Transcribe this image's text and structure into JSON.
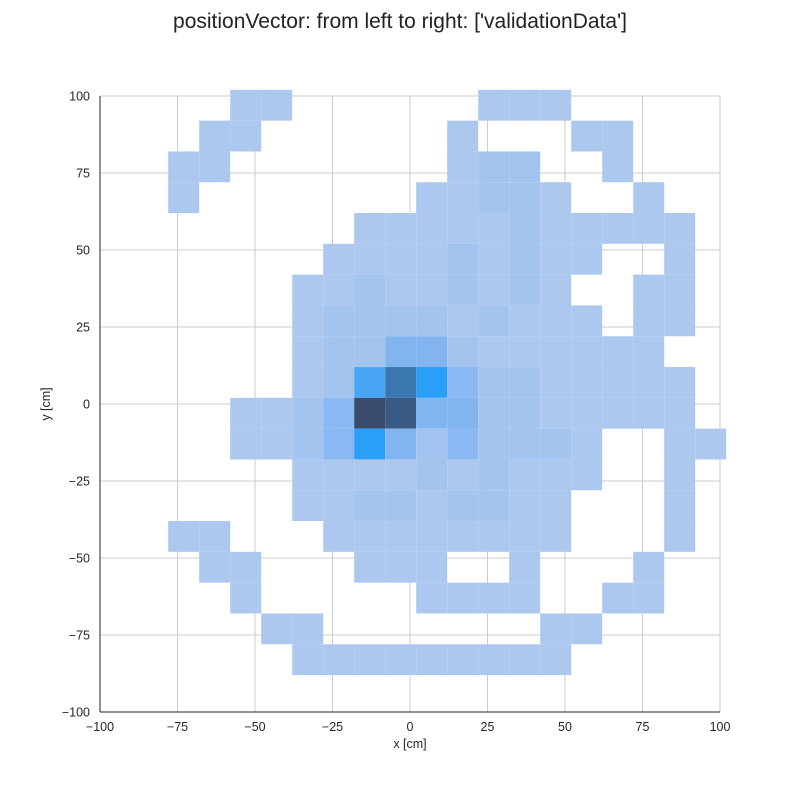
{
  "chart_data": {
    "type": "heatmap",
    "title": "positionVector: from left to right: ['validationData']",
    "xlabel": "x [cm]",
    "ylabel": "y [cm]",
    "xlim": [
      -100,
      100
    ],
    "ylim": [
      -100,
      100
    ],
    "x_ticks": [
      -100,
      -75,
      -50,
      -25,
      0,
      25,
      50,
      75,
      100
    ],
    "y_ticks": [
      -100,
      -75,
      -50,
      -25,
      0,
      25,
      50,
      75,
      100
    ],
    "x_tick_labels": [
      "−100",
      "−75",
      "−50",
      "−25",
      "0",
      "25",
      "50",
      "75",
      "100"
    ],
    "y_tick_labels": [
      "−100",
      "−75",
      "−50",
      "−25",
      "0",
      "25",
      "50",
      "75",
      "100"
    ],
    "grid": true,
    "bin_size_cm": 10,
    "x_bin_origin": -88,
    "y_bin_origin": -88,
    "colors": {
      "low": "#adc8ee",
      "mid": "#8ab4f0",
      "bright": "#2b9ff7",
      "dark": "#3b4c6a",
      "grid": "#cccccc"
    },
    "cells": [
      {
        "col": 3,
        "row": 18,
        "level": 1
      },
      {
        "col": 4,
        "row": 18,
        "level": 1
      },
      {
        "col": 11,
        "row": 18,
        "level": 1
      },
      {
        "col": 12,
        "row": 18,
        "level": 1
      },
      {
        "col": 13,
        "row": 18,
        "level": 1
      },
      {
        "col": 2,
        "row": 17,
        "level": 1
      },
      {
        "col": 3,
        "row": 17,
        "level": 1
      },
      {
        "col": 10,
        "row": 17,
        "level": 1
      },
      {
        "col": 14,
        "row": 17,
        "level": 1
      },
      {
        "col": 15,
        "row": 17,
        "level": 1
      },
      {
        "col": 1,
        "row": 16,
        "level": 1
      },
      {
        "col": 2,
        "row": 16,
        "level": 1
      },
      {
        "col": 10,
        "row": 16,
        "level": 1
      },
      {
        "col": 11,
        "row": 16,
        "level": 2
      },
      {
        "col": 12,
        "row": 16,
        "level": 2
      },
      {
        "col": 15,
        "row": 16,
        "level": 1
      },
      {
        "col": 1,
        "row": 15,
        "level": 1
      },
      {
        "col": 9,
        "row": 15,
        "level": 1
      },
      {
        "col": 10,
        "row": 15,
        "level": 1
      },
      {
        "col": 11,
        "row": 15,
        "level": 2
      },
      {
        "col": 12,
        "row": 15,
        "level": 2
      },
      {
        "col": 13,
        "row": 15,
        "level": 1
      },
      {
        "col": 16,
        "row": 15,
        "level": 1
      },
      {
        "col": 7,
        "row": 14,
        "level": 1
      },
      {
        "col": 8,
        "row": 14,
        "level": 1
      },
      {
        "col": 9,
        "row": 14,
        "level": 1
      },
      {
        "col": 10,
        "row": 14,
        "level": 1
      },
      {
        "col": 11,
        "row": 14,
        "level": 1
      },
      {
        "col": 12,
        "row": 14,
        "level": 2
      },
      {
        "col": 13,
        "row": 14,
        "level": 1
      },
      {
        "col": 14,
        "row": 14,
        "level": 1
      },
      {
        "col": 15,
        "row": 14,
        "level": 1
      },
      {
        "col": 16,
        "row": 14,
        "level": 1
      },
      {
        "col": 17,
        "row": 14,
        "level": 1
      },
      {
        "col": 6,
        "row": 13,
        "level": 1
      },
      {
        "col": 7,
        "row": 13,
        "level": 1
      },
      {
        "col": 8,
        "row": 13,
        "level": 1
      },
      {
        "col": 9,
        "row": 13,
        "level": 1
      },
      {
        "col": 10,
        "row": 13,
        "level": 2
      },
      {
        "col": 11,
        "row": 13,
        "level": 1
      },
      {
        "col": 12,
        "row": 13,
        "level": 2
      },
      {
        "col": 13,
        "row": 13,
        "level": 1
      },
      {
        "col": 14,
        "row": 13,
        "level": 1
      },
      {
        "col": 17,
        "row": 13,
        "level": 1
      },
      {
        "col": 5,
        "row": 12,
        "level": 1
      },
      {
        "col": 6,
        "row": 12,
        "level": 1
      },
      {
        "col": 7,
        "row": 12,
        "level": 2
      },
      {
        "col": 8,
        "row": 12,
        "level": 1
      },
      {
        "col": 9,
        "row": 12,
        "level": 1
      },
      {
        "col": 10,
        "row": 12,
        "level": 2
      },
      {
        "col": 11,
        "row": 12,
        "level": 1
      },
      {
        "col": 12,
        "row": 12,
        "level": 2
      },
      {
        "col": 13,
        "row": 12,
        "level": 1
      },
      {
        "col": 16,
        "row": 12,
        "level": 1
      },
      {
        "col": 17,
        "row": 12,
        "level": 1
      },
      {
        "col": 5,
        "row": 11,
        "level": 1
      },
      {
        "col": 6,
        "row": 11,
        "level": 2
      },
      {
        "col": 7,
        "row": 11,
        "level": 2
      },
      {
        "col": 8,
        "row": 11,
        "level": 2
      },
      {
        "col": 9,
        "row": 11,
        "level": 2
      },
      {
        "col": 10,
        "row": 11,
        "level": 1
      },
      {
        "col": 11,
        "row": 11,
        "level": 2
      },
      {
        "col": 12,
        "row": 11,
        "level": 1
      },
      {
        "col": 13,
        "row": 11,
        "level": 1
      },
      {
        "col": 14,
        "row": 11,
        "level": 1
      },
      {
        "col": 16,
        "row": 11,
        "level": 1
      },
      {
        "col": 17,
        "row": 11,
        "level": 1
      },
      {
        "col": 5,
        "row": 10,
        "level": 1
      },
      {
        "col": 6,
        "row": 10,
        "level": 2
      },
      {
        "col": 7,
        "row": 10,
        "level": 2
      },
      {
        "col": 8,
        "row": 10,
        "level": 4
      },
      {
        "col": 9,
        "row": 10,
        "level": 4
      },
      {
        "col": 10,
        "row": 10,
        "level": 2
      },
      {
        "col": 11,
        "row": 10,
        "level": 1
      },
      {
        "col": 12,
        "row": 10,
        "level": 1
      },
      {
        "col": 13,
        "row": 10,
        "level": 1
      },
      {
        "col": 14,
        "row": 10,
        "level": 1
      },
      {
        "col": 15,
        "row": 10,
        "level": 1
      },
      {
        "col": 16,
        "row": 10,
        "level": 1
      },
      {
        "col": 5,
        "row": 9,
        "level": 1
      },
      {
        "col": 6,
        "row": 9,
        "level": 2
      },
      {
        "col": 7,
        "row": 9,
        "level": 5
      },
      {
        "col": 8,
        "row": 9,
        "level": 7
      },
      {
        "col": 9,
        "row": 9,
        "level": 6
      },
      {
        "col": 10,
        "row": 9,
        "level": 3
      },
      {
        "col": 11,
        "row": 9,
        "level": 2
      },
      {
        "col": 12,
        "row": 9,
        "level": 2
      },
      {
        "col": 13,
        "row": 9,
        "level": 1
      },
      {
        "col": 14,
        "row": 9,
        "level": 1
      },
      {
        "col": 15,
        "row": 9,
        "level": 1
      },
      {
        "col": 16,
        "row": 9,
        "level": 1
      },
      {
        "col": 17,
        "row": 9,
        "level": 1
      },
      {
        "col": 3,
        "row": 8,
        "level": 1
      },
      {
        "col": 4,
        "row": 8,
        "level": 1
      },
      {
        "col": 5,
        "row": 8,
        "level": 2
      },
      {
        "col": 6,
        "row": 8,
        "level": 3
      },
      {
        "col": 7,
        "row": 8,
        "level": 9
      },
      {
        "col": 8,
        "row": 8,
        "level": 8
      },
      {
        "col": 9,
        "row": 8,
        "level": 4
      },
      {
        "col": 10,
        "row": 8,
        "level": 4
      },
      {
        "col": 11,
        "row": 8,
        "level": 2
      },
      {
        "col": 12,
        "row": 8,
        "level": 2
      },
      {
        "col": 13,
        "row": 8,
        "level": 1
      },
      {
        "col": 14,
        "row": 8,
        "level": 1
      },
      {
        "col": 15,
        "row": 8,
        "level": 1
      },
      {
        "col": 16,
        "row": 8,
        "level": 1
      },
      {
        "col": 17,
        "row": 8,
        "level": 1
      },
      {
        "col": 3,
        "row": 7,
        "level": 1
      },
      {
        "col": 4,
        "row": 7,
        "level": 1
      },
      {
        "col": 5,
        "row": 7,
        "level": 2
      },
      {
        "col": 6,
        "row": 7,
        "level": 3
      },
      {
        "col": 7,
        "row": 7,
        "level": 6
      },
      {
        "col": 8,
        "row": 7,
        "level": 4
      },
      {
        "col": 9,
        "row": 7,
        "level": 2
      },
      {
        "col": 10,
        "row": 7,
        "level": 3
      },
      {
        "col": 11,
        "row": 7,
        "level": 2
      },
      {
        "col": 12,
        "row": 7,
        "level": 2
      },
      {
        "col": 13,
        "row": 7,
        "level": 2
      },
      {
        "col": 14,
        "row": 7,
        "level": 1
      },
      {
        "col": 17,
        "row": 7,
        "level": 1
      },
      {
        "col": 18,
        "row": 7,
        "level": 1
      },
      {
        "col": 5,
        "row": 6,
        "level": 1
      },
      {
        "col": 6,
        "row": 6,
        "level": 1
      },
      {
        "col": 7,
        "row": 6,
        "level": 1
      },
      {
        "col": 8,
        "row": 6,
        "level": 1
      },
      {
        "col": 9,
        "row": 6,
        "level": 2
      },
      {
        "col": 10,
        "row": 6,
        "level": 1
      },
      {
        "col": 11,
        "row": 6,
        "level": 2
      },
      {
        "col": 12,
        "row": 6,
        "level": 1
      },
      {
        "col": 13,
        "row": 6,
        "level": 1
      },
      {
        "col": 14,
        "row": 6,
        "level": 1
      },
      {
        "col": 17,
        "row": 6,
        "level": 1
      },
      {
        "col": 5,
        "row": 5,
        "level": 1
      },
      {
        "col": 6,
        "row": 5,
        "level": 1
      },
      {
        "col": 7,
        "row": 5,
        "level": 2
      },
      {
        "col": 8,
        "row": 5,
        "level": 2
      },
      {
        "col": 9,
        "row": 5,
        "level": 1
      },
      {
        "col": 10,
        "row": 5,
        "level": 2
      },
      {
        "col": 11,
        "row": 5,
        "level": 2
      },
      {
        "col": 12,
        "row": 5,
        "level": 1
      },
      {
        "col": 13,
        "row": 5,
        "level": 1
      },
      {
        "col": 17,
        "row": 5,
        "level": 1
      },
      {
        "col": 1,
        "row": 4,
        "level": 1
      },
      {
        "col": 2,
        "row": 4,
        "level": 1
      },
      {
        "col": 6,
        "row": 4,
        "level": 1
      },
      {
        "col": 7,
        "row": 4,
        "level": 1
      },
      {
        "col": 8,
        "row": 4,
        "level": 1
      },
      {
        "col": 9,
        "row": 4,
        "level": 1
      },
      {
        "col": 10,
        "row": 4,
        "level": 1
      },
      {
        "col": 11,
        "row": 4,
        "level": 1
      },
      {
        "col": 12,
        "row": 4,
        "level": 1
      },
      {
        "col": 13,
        "row": 4,
        "level": 1
      },
      {
        "col": 17,
        "row": 4,
        "level": 1
      },
      {
        "col": 2,
        "row": 3,
        "level": 1
      },
      {
        "col": 3,
        "row": 3,
        "level": 1
      },
      {
        "col": 7,
        "row": 3,
        "level": 1
      },
      {
        "col": 8,
        "row": 3,
        "level": 1
      },
      {
        "col": 9,
        "row": 3,
        "level": 1
      },
      {
        "col": 12,
        "row": 3,
        "level": 1
      },
      {
        "col": 16,
        "row": 3,
        "level": 1
      },
      {
        "col": 3,
        "row": 2,
        "level": 1
      },
      {
        "col": 9,
        "row": 2,
        "level": 1
      },
      {
        "col": 10,
        "row": 2,
        "level": 1
      },
      {
        "col": 11,
        "row": 2,
        "level": 1
      },
      {
        "col": 12,
        "row": 2,
        "level": 1
      },
      {
        "col": 15,
        "row": 2,
        "level": 1
      },
      {
        "col": 16,
        "row": 2,
        "level": 1
      },
      {
        "col": 4,
        "row": 1,
        "level": 1
      },
      {
        "col": 5,
        "row": 1,
        "level": 1
      },
      {
        "col": 13,
        "row": 1,
        "level": 1
      },
      {
        "col": 14,
        "row": 1,
        "level": 1
      },
      {
        "col": 5,
        "row": 0,
        "level": 1
      },
      {
        "col": 6,
        "row": 0,
        "level": 1
      },
      {
        "col": 7,
        "row": 0,
        "level": 1
      },
      {
        "col": 8,
        "row": 0,
        "level": 1
      },
      {
        "col": 9,
        "row": 0,
        "level": 1
      },
      {
        "col": 10,
        "row": 0,
        "level": 1
      },
      {
        "col": 11,
        "row": 0,
        "level": 1
      },
      {
        "col": 12,
        "row": 0,
        "level": 1
      },
      {
        "col": 13,
        "row": 0,
        "level": 1
      }
    ]
  }
}
